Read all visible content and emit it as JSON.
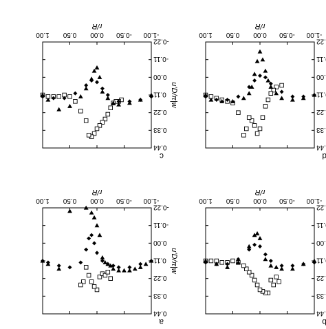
{
  "figure": {
    "note_rotation": "all four panels are rendered upside down (rotated 180 degrees)",
    "shared_labels": {
      "xlabel": "r/R",
      "ylabel": "u'D/π|w"
    }
  },
  "chart_data": [
    {
      "type": "scatter",
      "panel": "a",
      "xlabel": "r/R",
      "ylabel": "u'D/π|w",
      "xlim": [
        -1.0,
        1.0
      ],
      "ylim": [
        -0.22,
        0.44
      ],
      "xticks": [
        "-1.00",
        "-0.50",
        "0.00",
        "0.50",
        "1.00"
      ],
      "yticks": [
        "-0.22",
        "-0.11",
        "0.00",
        "0.11",
        "0.22",
        "0.33",
        "0.44"
      ],
      "series": [
        {
          "marker": "square",
          "x": [
            0.0,
            0.05,
            0.1,
            0.15,
            0.2,
            0.25,
            0.3,
            -0.05,
            -0.1,
            -0.15,
            -0.2,
            -0.25
          ],
          "y": [
            0.29,
            0.27,
            0.24,
            0.2,
            0.15,
            0.24,
            0.26,
            0.21,
            0.19,
            0.2,
            0.18,
            0.22
          ]
        },
        {
          "marker": "triangle-down",
          "x": [
            -1.0,
            -0.9,
            -0.8,
            -0.7,
            -0.6,
            -0.5,
            -0.4,
            -0.3,
            -0.25,
            -0.2,
            -0.15,
            -0.1,
            -0.05,
            0.0,
            0.05,
            0.1,
            0.2,
            0.3,
            0.5,
            0.7,
            0.9,
            1.0
          ],
          "y": [
            0.11,
            0.13,
            0.15,
            0.16,
            0.17,
            0.17,
            0.17,
            0.16,
            0.14,
            0.13,
            0.12,
            0.09,
            -0.05,
            -0.11,
            -0.16,
            -0.19,
            -0.22,
            -0.24,
            -0.2,
            0.16,
            0.13,
            0.11
          ]
        },
        {
          "marker": "diamond",
          "x": [
            -1.0,
            -0.8,
            -0.6,
            -0.4,
            -0.3,
            -0.2,
            -0.1,
            0.0,
            0.05,
            0.1,
            0.15,
            0.2,
            0.3,
            0.5,
            0.7,
            0.9,
            1.0
          ],
          "y": [
            0.11,
            0.13,
            0.15,
            0.15,
            0.14,
            0.13,
            0.11,
            0.06,
            0.0,
            -0.05,
            -0.03,
            0.04,
            0.12,
            0.15,
            0.14,
            0.12,
            0.11
          ]
        }
      ]
    },
    {
      "type": "scatter",
      "panel": "b",
      "xlabel": "r/R",
      "ylabel": "u'D/π|w",
      "xlim": [
        -1.0,
        1.0
      ],
      "ylim": [
        -0.22,
        0.44
      ],
      "xticks": [
        "-1.00",
        "-0.50",
        "0.00",
        "0.50",
        "1.00"
      ],
      "yticks": [
        "-0.22",
        "-0.11",
        "0.00",
        "0.11",
        "0.22",
        "0.33",
        "0.44"
      ],
      "series": [
        {
          "marker": "square",
          "x": [
            -0.35,
            -0.3,
            -0.25,
            -0.2,
            -0.15,
            -0.1,
            -0.05,
            0.0,
            0.05,
            0.1,
            0.15,
            0.2,
            0.25,
            0.3,
            0.4,
            0.5,
            0.6,
            0.7,
            0.8,
            0.9,
            1.0
          ],
          "y": [
            0.24,
            0.21,
            0.26,
            0.23,
            0.31,
            0.31,
            0.3,
            0.29,
            0.26,
            0.23,
            0.2,
            0.18,
            0.16,
            0.14,
            0.12,
            0.11,
            0.12,
            0.12,
            0.11,
            0.11,
            0.11
          ]
        },
        {
          "marker": "triangle-down",
          "x": [
            -1.0,
            -0.8,
            -0.6,
            -0.4,
            -0.3,
            -0.2,
            -0.1,
            0.0,
            0.05,
            0.1,
            0.2,
            0.4,
            0.6,
            0.8,
            1.0
          ],
          "y": [
            0.11,
            0.13,
            0.16,
            0.16,
            0.15,
            0.14,
            0.1,
            -0.03,
            -0.06,
            -0.05,
            0.02,
            0.12,
            0.15,
            0.13,
            0.11
          ]
        },
        {
          "marker": "diamond",
          "x": [
            -1.0,
            -0.8,
            -0.6,
            -0.4,
            -0.2,
            -0.1,
            0.0,
            0.1,
            0.2,
            0.4,
            0.6,
            0.8,
            1.0
          ],
          "y": [
            0.12,
            0.13,
            0.14,
            0.14,
            0.11,
            0.07,
            0.02,
            0.01,
            0.04,
            0.1,
            0.13,
            0.13,
            0.12
          ]
        }
      ]
    },
    {
      "type": "scatter",
      "panel": "c",
      "xlabel": "r/R",
      "ylabel": "u'D/π|w",
      "xlim": [
        -1.0,
        1.0
      ],
      "ylim": [
        -0.22,
        0.44
      ],
      "xticks": [
        "-1.00",
        "-0.50",
        "0.00",
        "0.50",
        "1.00"
      ],
      "yticks": [
        "-0.22",
        "-0.11",
        "0.00",
        "0.11",
        "0.22",
        "0.33",
        "0.44"
      ],
      "series": [
        {
          "marker": "square",
          "x": [
            -0.45,
            -0.4,
            -0.35,
            -0.3,
            -0.25,
            -0.2,
            -0.15,
            -0.1,
            -0.05,
            0.0,
            0.05,
            0.1,
            0.15,
            0.2,
            0.3,
            0.4,
            0.5,
            0.6,
            0.7,
            0.8,
            0.9,
            1.0
          ],
          "y": [
            0.14,
            0.15,
            0.15,
            0.16,
            0.19,
            0.23,
            0.26,
            0.28,
            0.3,
            0.32,
            0.35,
            0.37,
            0.36,
            0.27,
            0.21,
            0.15,
            0.12,
            0.11,
            0.12,
            0.12,
            0.12,
            0.11
          ]
        },
        {
          "marker": "triangle-down",
          "x": [
            -1.0,
            -0.8,
            -0.6,
            -0.4,
            -0.3,
            -0.2,
            -0.1,
            -0.05,
            0.0,
            0.05,
            0.1,
            0.2,
            0.3,
            0.5,
            0.7,
            0.9,
            1.0
          ],
          "y": [
            0.11,
            0.14,
            0.16,
            0.17,
            0.16,
            0.13,
            0.09,
            0.0,
            -0.06,
            -0.04,
            0.01,
            0.07,
            0.12,
            0.18,
            0.2,
            0.14,
            0.11
          ]
        },
        {
          "marker": "diamond",
          "x": [
            -1.0,
            -0.8,
            -0.6,
            -0.4,
            -0.2,
            -0.1,
            0.0,
            0.1,
            0.2,
            0.4,
            0.6,
            0.8,
            1.0
          ],
          "y": [
            0.12,
            0.14,
            0.15,
            0.15,
            0.11,
            0.07,
            0.03,
            0.02,
            0.05,
            0.1,
            0.13,
            0.13,
            0.12
          ]
        }
      ]
    },
    {
      "type": "scatter",
      "panel": "d",
      "xlabel": "r/R",
      "ylabel": "u'D/π|w",
      "xlim": [
        -1.0,
        1.0
      ],
      "ylim": [
        -0.22,
        0.44
      ],
      "xticks": [
        "-1.00",
        "-0.50",
        "0.00",
        "0.50",
        "1.00"
      ],
      "yticks": [
        "-0.22",
        "-0.11",
        "0.00",
        "0.11",
        "0.22",
        "0.33",
        "0.44"
      ],
      "series": [
        {
          "marker": "square",
          "x": [
            -0.4,
            -0.3,
            -0.25,
            -0.2,
            -0.15,
            -0.1,
            -0.05,
            0.0,
            0.05,
            0.1,
            0.15,
            0.2,
            0.25,
            0.3,
            0.4,
            0.5,
            0.6,
            0.7,
            0.8,
            0.9,
            1.0
          ],
          "y": [
            0.05,
            0.06,
            0.08,
            0.1,
            0.14,
            0.18,
            0.25,
            0.32,
            0.35,
            0.3,
            0.27,
            0.25,
            0.32,
            0.36,
            0.22,
            0.16,
            0.15,
            0.14,
            0.13,
            0.12,
            0.11
          ]
        },
        {
          "marker": "triangle-down",
          "x": [
            -1.0,
            -0.8,
            -0.6,
            -0.4,
            -0.3,
            -0.2,
            -0.15,
            -0.1,
            -0.05,
            0.0,
            0.05,
            0.1,
            0.15,
            0.2,
            0.3,
            0.5,
            0.7,
            0.9,
            1.0
          ],
          "y": [
            0.11,
            0.13,
            0.14,
            0.13,
            0.1,
            0.06,
            0.02,
            -0.04,
            -0.11,
            -0.16,
            -0.1,
            -0.02,
            0.06,
            0.1,
            0.13,
            0.15,
            0.15,
            0.14,
            0.11
          ]
        },
        {
          "marker": "diamond",
          "x": [
            -1.0,
            -0.8,
            -0.6,
            -0.4,
            -0.2,
            -0.1,
            0.0,
            0.1,
            0.2,
            0.4,
            0.6,
            0.8,
            1.0
          ],
          "y": [
            0.11,
            0.12,
            0.12,
            0.09,
            0.04,
            0.0,
            -0.01,
            0.02,
            0.06,
            0.12,
            0.14,
            0.14,
            0.12
          ]
        }
      ]
    }
  ]
}
